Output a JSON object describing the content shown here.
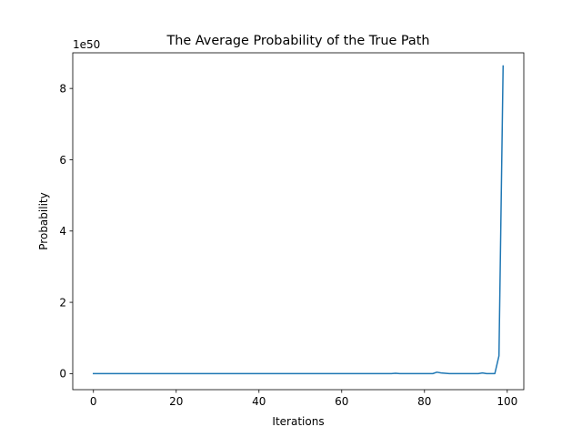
{
  "chart_data": {
    "type": "line",
    "title": "The Average Probability of the True Path",
    "xlabel": "Iterations",
    "ylabel": "Probability",
    "y_offset_label": "1e50",
    "y_scale_multiplier": 1e+50,
    "xlim": [
      -5,
      104
    ],
    "ylim": [
      -0.45,
      9.0
    ],
    "x_ticks": [
      0,
      20,
      40,
      60,
      80,
      100
    ],
    "y_ticks": [
      0,
      2,
      4,
      6,
      8
    ],
    "grid": false,
    "series": [
      {
        "color": "#1f77b4",
        "x": [
          0,
          1,
          2,
          3,
          4,
          5,
          6,
          7,
          8,
          9,
          10,
          11,
          12,
          13,
          14,
          15,
          16,
          17,
          18,
          19,
          20,
          21,
          22,
          23,
          24,
          25,
          26,
          27,
          28,
          29,
          30,
          31,
          32,
          33,
          34,
          35,
          36,
          37,
          38,
          39,
          40,
          41,
          42,
          43,
          44,
          45,
          46,
          47,
          48,
          49,
          50,
          51,
          52,
          53,
          54,
          55,
          56,
          57,
          58,
          59,
          60,
          61,
          62,
          63,
          64,
          65,
          66,
          67,
          68,
          69,
          70,
          71,
          72,
          73,
          74,
          75,
          76,
          77,
          78,
          79,
          80,
          81,
          82,
          83,
          84,
          85,
          86,
          87,
          88,
          89,
          90,
          91,
          92,
          93,
          94,
          95,
          96,
          97,
          98,
          99
        ],
        "y": [
          0,
          0,
          0,
          0,
          0,
          0,
          0,
          0,
          0,
          0,
          0,
          0,
          0,
          0,
          0,
          0,
          0,
          0,
          0,
          0,
          0,
          0,
          0,
          0,
          0,
          0,
          0,
          0,
          0,
          0,
          0,
          0,
          0,
          0,
          0,
          0,
          0,
          0,
          0,
          0,
          0,
          0,
          0,
          0,
          0,
          0,
          0,
          0,
          0,
          0,
          0,
          0,
          0,
          0,
          0,
          0,
          0,
          0,
          0,
          0,
          0,
          0,
          0,
          0,
          0,
          0,
          0,
          0,
          0,
          0,
          0,
          0,
          0,
          0.01,
          0,
          0,
          0,
          0,
          0,
          0,
          0,
          0,
          0,
          0.04,
          0.02,
          0.01,
          0,
          0,
          0,
          0,
          0,
          0,
          0,
          0,
          0.02,
          0,
          0,
          0,
          0.5,
          8.63
        ]
      }
    ]
  }
}
